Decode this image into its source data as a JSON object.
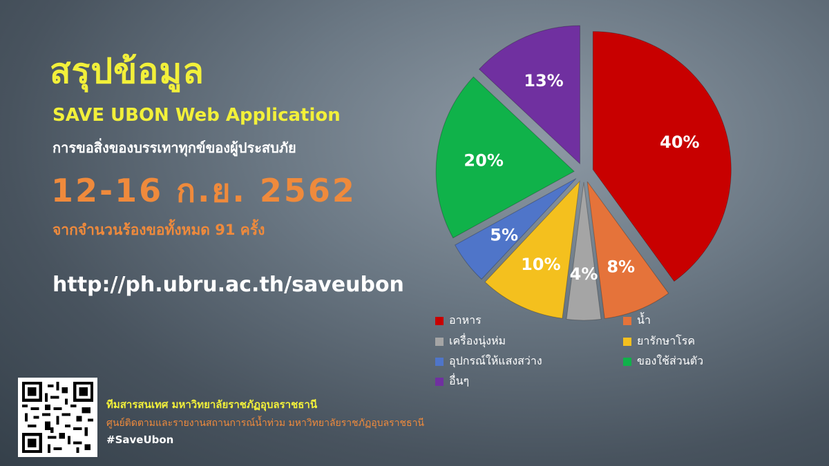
{
  "header": {
    "title": "สรุปข้อมูล",
    "app_name": "SAVE UBON Web Application",
    "subtitle": "การขอสิ่งของบรรเทาทุกข์ของผู้ประสบภัย",
    "date_range": "12-16 ก.ย. 2562",
    "total": "จากจำนวนร้องขอทั้งหมด 91 ครั้ง",
    "url": "http://ph.ubru.ac.th/saveubon"
  },
  "footer": {
    "line1": "ทีมสารสนเทศ มหาวิทยาลัยราชภัฏอุบลราชธานี",
    "line2": "ศูนย์ติดตามและรายงานสถานการณ์น้ำท่วม มหาวิทยาลัยราชภัฏอุบลราชธานี",
    "line3": "#SaveUbon"
  },
  "chart_data": {
    "type": "pie",
    "exploded": true,
    "legend_position": "bottom",
    "slices": [
      {
        "label": "อาหาร",
        "value": 40,
        "value_label": "40%",
        "color": "#c80000"
      },
      {
        "label": "น้ำ",
        "value": 8,
        "value_label": "8%",
        "color": "#e5733a"
      },
      {
        "label": "เครื่องนุ่งห่ม",
        "value": 4,
        "value_label": "4%",
        "color": "#a5a5a5"
      },
      {
        "label": "ยารักษาโรค",
        "value": 10,
        "value_label": "10%",
        "color": "#f4c01e"
      },
      {
        "label": "อุปกรณ์ให้แสงสว่าง",
        "value": 5,
        "value_label": "5%",
        "color": "#4f75c9"
      },
      {
        "label": "ของใช้ส่วนตัว",
        "value": 20,
        "value_label": "20%",
        "color": "#10b24a"
      },
      {
        "label": "อื่นๆ",
        "value": 13,
        "value_label": "13%",
        "color": "#7030a0"
      }
    ]
  }
}
